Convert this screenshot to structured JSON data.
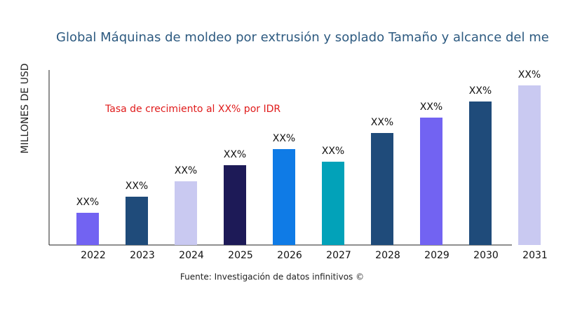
{
  "chart_data": {
    "type": "bar",
    "title": "Global Máquinas de moldeo por extrusión y soplado Tamaño y alcance del me",
    "y_label": "MILLONES DE USD",
    "annotation": "Tasa de crecimiento al XX% por IDR",
    "source": "Fuente: Investigación de datos infinitivos ©",
    "categories": [
      "2022",
      "2023",
      "2024",
      "2025",
      "2026",
      "2027",
      "2028",
      "2029",
      "2030",
      "2031"
    ],
    "values": [
      46,
      69,
      91,
      114,
      137,
      119,
      160,
      182,
      205,
      228
    ],
    "value_labels": [
      "XX%",
      "XX%",
      "XX%",
      "XX%",
      "XX%",
      "XX%",
      "XX%",
      "XX%",
      "XX%",
      "XX%"
    ],
    "colors": [
      "#7263f2",
      "#1f4b7a",
      "#c9c9f1",
      "#1d1a57",
      "#0f7be6",
      "#02a2b9",
      "#1f4b7a",
      "#7263f2",
      "#1f4b7a",
      "#c9c9f1"
    ],
    "ylim": [
      0,
      250
    ]
  }
}
